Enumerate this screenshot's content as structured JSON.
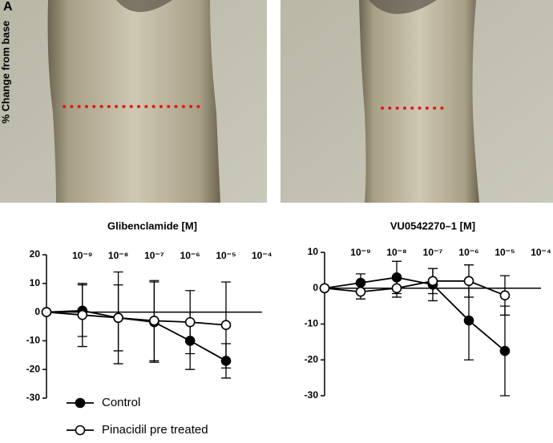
{
  "panel_label": "A",
  "chart_data": [
    {
      "type": "line",
      "title": "Glibenclamide [M]",
      "y_label": "% Change from base",
      "categories": [
        null,
        "10⁻⁹",
        "10⁻⁸",
        "10⁻⁷",
        "10⁻⁶",
        "10⁻⁵",
        "10⁻⁴"
      ],
      "ylim": [
        -30,
        20
      ],
      "yticks": [
        -30,
        -20,
        -10,
        0,
        10,
        20
      ],
      "legend": "bottom-left",
      "series": [
        {
          "name": "Control",
          "color": "#000000",
          "marker": "filled",
          "values": [
            0,
            0.5,
            -2,
            -3.5,
            -10,
            -17,
            null
          ],
          "errors": [
            0,
            9,
            11.5,
            14,
            10,
            6,
            null
          ]
        },
        {
          "name": "Pinacidil pre treated",
          "color": "#000000",
          "marker": "open",
          "values": [
            0,
            -1,
            -2,
            -3,
            -3.5,
            -4.5,
            null
          ],
          "errors": [
            0,
            11,
            16,
            14,
            11,
            15,
            null
          ]
        }
      ]
    },
    {
      "type": "line",
      "title": "VU0542270–1 [M]",
      "categories": [
        null,
        "10⁻⁹",
        "10⁻⁸",
        "10⁻⁷",
        "10⁻⁶",
        "10⁻⁵",
        "10⁻⁴"
      ],
      "ylim": [
        -30,
        10
      ],
      "yticks": [
        -30,
        -20,
        -10,
        0,
        10
      ],
      "series": [
        {
          "name": "Control",
          "color": "#000000",
          "marker": "filled",
          "values": [
            0,
            1.5,
            3,
            1,
            -9,
            -17.5,
            null
          ],
          "errors": [
            0,
            2.5,
            4.5,
            4.5,
            11,
            12.5,
            null
          ]
        },
        {
          "name": "Pinacidil pre treated",
          "color": "#000000",
          "marker": "open",
          "values": [
            0,
            -1,
            0,
            2,
            2,
            -2,
            null
          ],
          "errors": [
            0,
            2,
            2.5,
            3.5,
            4.5,
            5.5,
            null
          ]
        }
      ]
    }
  ]
}
